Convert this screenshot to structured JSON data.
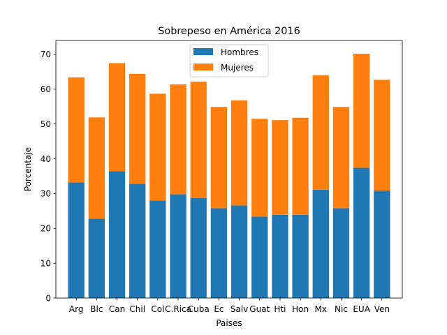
{
  "chart_data": {
    "type": "bar",
    "stacked": true,
    "title": "Sobrepeso en América 2016",
    "xlabel": "Paises",
    "ylabel": "Porcentaje",
    "ylim": [
      0,
      74
    ],
    "yticks": [
      0,
      10,
      20,
      30,
      40,
      50,
      60,
      70
    ],
    "grid": false,
    "legend_position": "top-center",
    "categories": [
      "Arg",
      "Blc",
      "Can",
      "Chil",
      "Col",
      "C.Rica",
      "Cuba",
      "Ec",
      "Salv",
      "Guat",
      "Hti",
      "Hon",
      "Mx",
      "Nic",
      "EUA",
      "Ven"
    ],
    "series": [
      {
        "name": "Hombres",
        "color": "#1f77b4",
        "values": [
          33.2,
          22.8,
          36.4,
          32.8,
          28.0,
          29.8,
          28.7,
          25.8,
          26.6,
          23.4,
          23.9,
          23.9,
          31.1,
          25.8,
          37.4,
          30.9
        ]
      },
      {
        "name": "Mujeres",
        "color": "#ff7f0e",
        "values": [
          30.2,
          29.1,
          31.1,
          31.6,
          30.7,
          31.6,
          33.5,
          29.1,
          30.2,
          28.1,
          27.2,
          27.9,
          32.9,
          29.1,
          32.8,
          31.8
        ]
      }
    ]
  }
}
